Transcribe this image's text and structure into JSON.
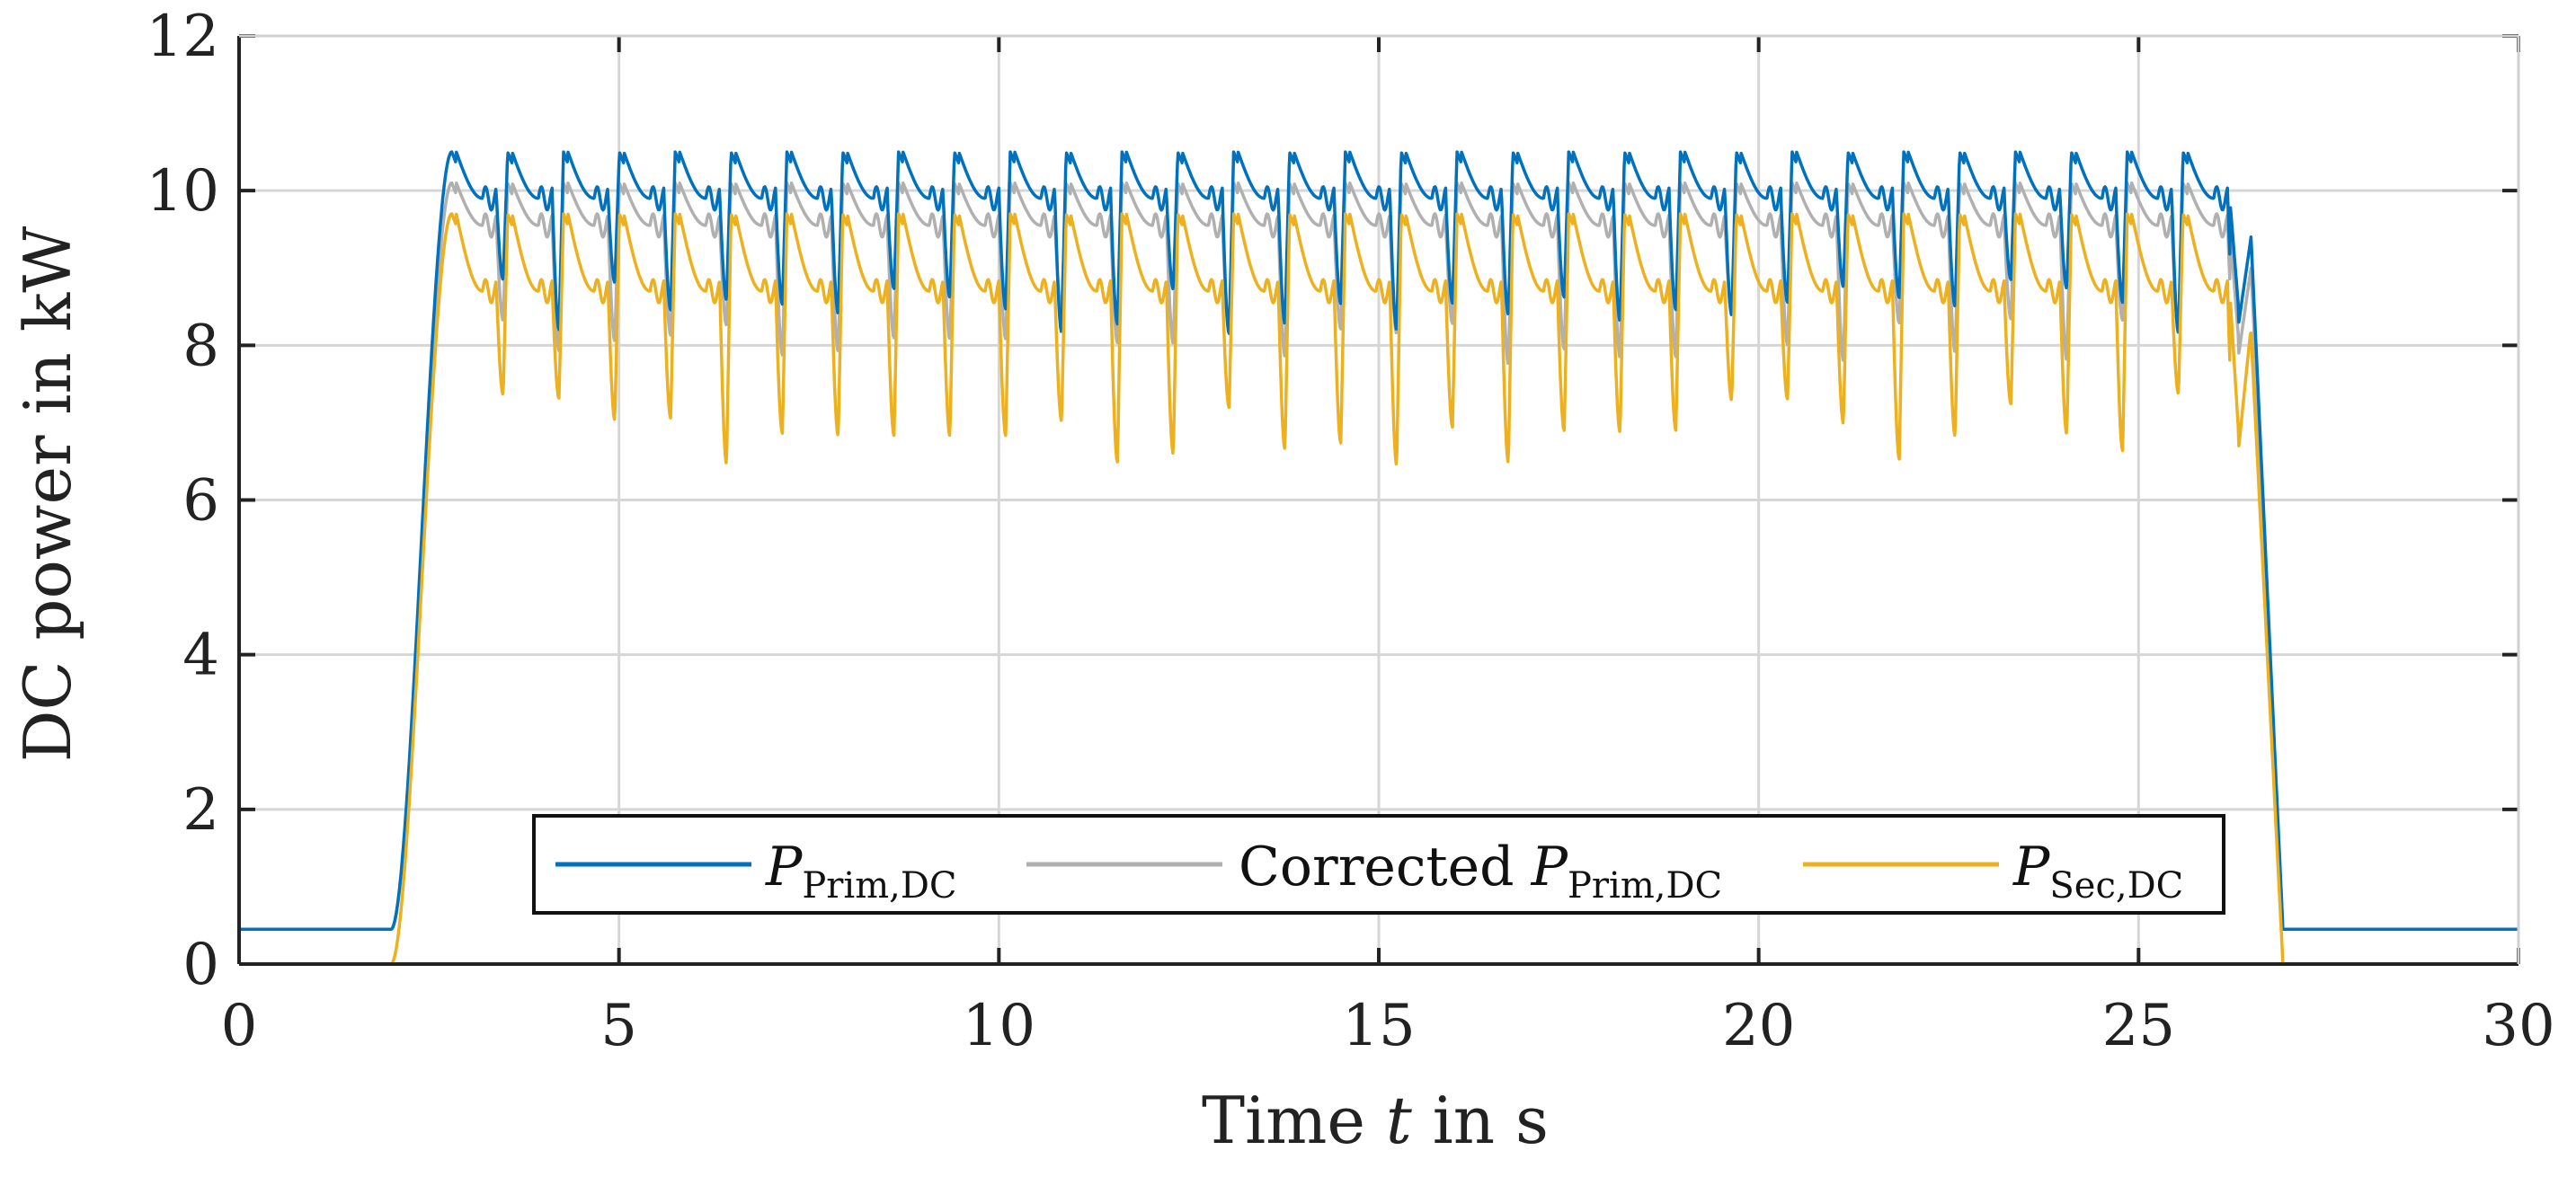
{
  "colors": {
    "primary": "#0072bd",
    "corrected": "#b0b0b0",
    "secondary": "#edb120",
    "grid": "#d6d6d6",
    "axis": "#222222"
  },
  "chart_data": {
    "type": "line",
    "title": "",
    "xlabel_text": "Time",
    "xlabel_var": "t",
    "xlabel_unit": "in s",
    "ylabel": "DC power in kW",
    "xlim": [
      0,
      30
    ],
    "ylim": [
      0,
      12
    ],
    "xticks": [
      0,
      5,
      10,
      15,
      20,
      25,
      30
    ],
    "yticks": [
      0,
      2,
      4,
      6,
      8,
      10,
      12
    ],
    "grid": true,
    "legend_position": "bottom-center",
    "description_of_profile": {
      "idle_primary_kW": 0.45,
      "idle_secondary_kW": 0.0,
      "ramp_up_start_s": 2.0,
      "plateau_start_s": 2.8,
      "plateau_end_s": 26.2,
      "ramp_down_end_s": 26.9,
      "pulse_period_s": 0.735
    },
    "series": [
      {
        "key": "primary",
        "label_main": "P",
        "label_sub": "Prim,DC",
        "label_prefix": "",
        "peak_kW": 10.5,
        "trough_kW": 8.5,
        "baseline_kW": 9.9
      },
      {
        "key": "corrected",
        "label_main": "P",
        "label_sub": "Prim,DC",
        "label_prefix": "Corrected ",
        "peak_kW": 10.1,
        "trough_kW": 8.1,
        "baseline_kW": 9.55
      },
      {
        "key": "secondary",
        "label_main": "P",
        "label_sub": "Sec,DC",
        "label_prefix": "",
        "peak_kW": 9.7,
        "trough_kW": 6.9,
        "baseline_kW": 8.7
      }
    ]
  }
}
